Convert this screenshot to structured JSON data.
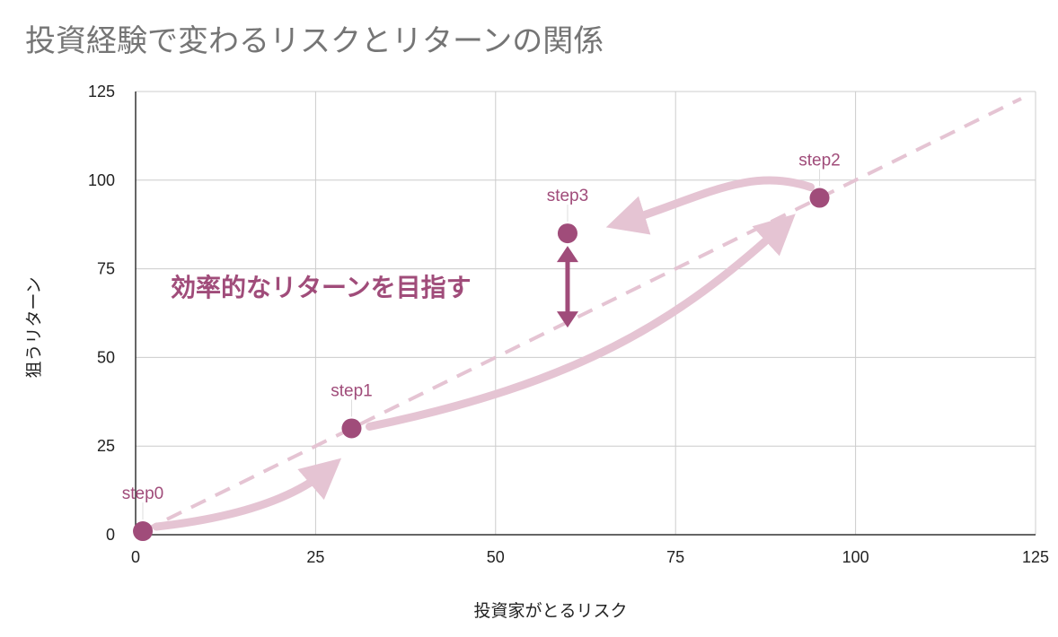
{
  "chart_data": {
    "type": "scatter",
    "title": "投資経験で変わるリスクとリターンの関係",
    "xlabel": "投資家がとるリスク",
    "ylabel": "狙うリターン",
    "xlim": [
      0,
      125
    ],
    "ylim": [
      0,
      125
    ],
    "xticks": [
      "0",
      "25",
      "50",
      "75",
      "100",
      "125"
    ],
    "yticks": [
      "0",
      "25",
      "50",
      "75",
      "100",
      "125"
    ],
    "grid": true,
    "points": [
      {
        "label": "step0",
        "x": 1,
        "y": 1
      },
      {
        "label": "step1",
        "x": 30,
        "y": 30
      },
      {
        "label": "step2",
        "x": 95,
        "y": 95
      },
      {
        "label": "step3",
        "x": 60,
        "y": 85
      }
    ],
    "trendline": {
      "style": "dashed",
      "from": [
        1,
        1
      ],
      "to": [
        123,
        123
      ]
    },
    "annotation": "効率的なリターンを目指す",
    "colors": {
      "point": "#a04c7a",
      "trend": "#e5c4d3",
      "arrow": "#e5c4d3",
      "annotation": "#a04c7a",
      "grid": "#cccccc"
    }
  }
}
